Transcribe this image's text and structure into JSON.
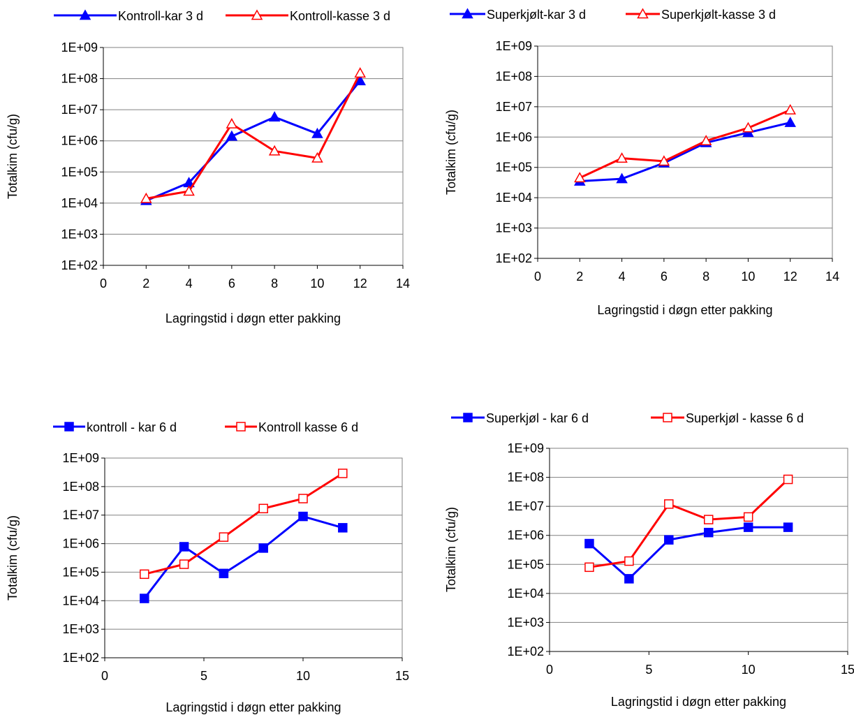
{
  "colors": {
    "blue": "#0000FF",
    "red": "#FF0000",
    "grid": "#808080",
    "plot_border": "#808080",
    "axis": "#000000",
    "text": "#000000"
  },
  "chart_data": [
    {
      "type": "line",
      "title": "",
      "xlabel": "Lagringstid i døgn etter pakking",
      "ylabel": "Totalkim (cfu/g)",
      "y_scale": "log",
      "xlim": [
        0,
        14
      ],
      "xticks": [
        0,
        2,
        4,
        6,
        8,
        10,
        12,
        14
      ],
      "xtick_labels": [
        "0",
        "2",
        "4",
        "6",
        "8",
        "10",
        "12",
        "14"
      ],
      "ylim": [
        100,
        1000000000
      ],
      "yticks": [
        100,
        1000,
        10000,
        100000,
        1000000,
        10000000,
        100000000,
        1000000000
      ],
      "ytick_labels": [
        "1E+02",
        "1E+03",
        "1E+04",
        "1E+05",
        "1E+06",
        "1E+07",
        "1E+08",
        "1E+09"
      ],
      "grid": "horizontal",
      "legend": "top",
      "series": [
        {
          "name": "Kontroll-kar 3 d",
          "color": "blue",
          "marker": "triangle-filled",
          "x": [
            2,
            4,
            6,
            8,
            10,
            12
          ],
          "y": [
            12000,
            45000,
            1400000,
            5800000,
            1700000,
            85000000
          ]
        },
        {
          "name": "Kontroll-kasse 3 d",
          "color": "red",
          "marker": "triangle-open",
          "x": [
            2,
            4,
            6,
            8,
            10,
            12
          ],
          "y": [
            14000,
            24000,
            3500000,
            470000,
            280000,
            150000000
          ]
        }
      ]
    },
    {
      "type": "line",
      "title": "",
      "xlabel": "Lagringstid i døgn etter pakking",
      "ylabel": "Totalkim (cfu/g)",
      "y_scale": "log",
      "xlim": [
        0,
        14
      ],
      "xticks": [
        0,
        2,
        4,
        6,
        8,
        10,
        12,
        14
      ],
      "xtick_labels": [
        "0",
        "2",
        "4",
        "6",
        "8",
        "10",
        "12",
        "14"
      ],
      "ylim": [
        100,
        1000000000
      ],
      "yticks": [
        100,
        1000,
        10000,
        100000,
        1000000,
        10000000,
        100000000,
        1000000000
      ],
      "ytick_labels": [
        "1E+02",
        "1E+03",
        "1E+04",
        "1E+05",
        "1E+06",
        "1E+07",
        "1E+08",
        "1E+09"
      ],
      "grid": "horizontal",
      "legend": "top",
      "series": [
        {
          "name": "Superkjølt-kar 3 d",
          "color": "blue",
          "marker": "triangle-filled",
          "x": [
            2,
            4,
            6,
            8,
            10,
            12
          ],
          "y": [
            35000,
            42000,
            140000,
            650000,
            1400000,
            3000000
          ]
        },
        {
          "name": "Superkjølt-kasse 3 d",
          "color": "red",
          "marker": "triangle-open",
          "x": [
            2,
            4,
            6,
            8,
            10,
            12
          ],
          "y": [
            45000,
            200000,
            160000,
            750000,
            2000000,
            7800000
          ]
        }
      ]
    },
    {
      "type": "line",
      "title": "",
      "xlabel": "Lagringstid i døgn etter pakking",
      "ylabel": "Totalkim (cfu/g)",
      "y_scale": "log",
      "xlim": [
        0,
        15
      ],
      "xticks": [
        0,
        5,
        10,
        15
      ],
      "xtick_labels": [
        "0",
        "5",
        "10",
        "15"
      ],
      "ylim": [
        100,
        1000000000
      ],
      "yticks": [
        100,
        1000,
        10000,
        100000,
        1000000,
        10000000,
        100000000,
        1000000000
      ],
      "ytick_labels": [
        "1E+02",
        "1E+03",
        "1E+04",
        "1E+05",
        "1E+06",
        "1E+07",
        "1E+08",
        "1E+09"
      ],
      "grid": "horizontal",
      "legend": "top",
      "series": [
        {
          "name": "kontroll - kar 6 d",
          "color": "blue",
          "marker": "square-filled",
          "x": [
            2,
            4,
            6,
            8,
            10,
            12
          ],
          "y": [
            12000,
            780000,
            90000,
            700000,
            9000000,
            3600000
          ]
        },
        {
          "name": "Kontroll kasse 6 d",
          "color": "red",
          "marker": "square-open",
          "x": [
            2,
            4,
            6,
            8,
            10,
            12
          ],
          "y": [
            85000,
            190000,
            1700000,
            17000000,
            38000000,
            290000000
          ]
        }
      ]
    },
    {
      "type": "line",
      "title": "",
      "xlabel": "Lagringstid i døgn etter pakking",
      "ylabel": "Totalkim (cfu/g)",
      "y_scale": "log",
      "xlim": [
        0,
        15
      ],
      "xticks": [
        0,
        5,
        10,
        15
      ],
      "xtick_labels": [
        "0",
        "5",
        "10",
        "15"
      ],
      "ylim": [
        100,
        1000000000
      ],
      "yticks": [
        100,
        1000,
        10000,
        100000,
        1000000,
        10000000,
        100000000,
        1000000000
      ],
      "ytick_labels": [
        "1E+02",
        "1E+03",
        "1E+04",
        "1E+05",
        "1E+06",
        "1E+07",
        "1E+08",
        "1E+09"
      ],
      "grid": "horizontal",
      "legend": "top",
      "series": [
        {
          "name": "Superkjøl - kar 6 d",
          "color": "blue",
          "marker": "square-filled",
          "x": [
            2,
            4,
            6,
            8,
            10,
            12
          ],
          "y": [
            520000,
            32000,
            700000,
            1250000,
            1900000,
            1900000
          ]
        },
        {
          "name": "Superkjøl - kasse 6 d",
          "color": "red",
          "marker": "square-open",
          "x": [
            2,
            4,
            6,
            8,
            10,
            12
          ],
          "y": [
            80000,
            130000,
            12000000,
            3500000,
            4300000,
            85000000
          ]
        }
      ]
    }
  ]
}
